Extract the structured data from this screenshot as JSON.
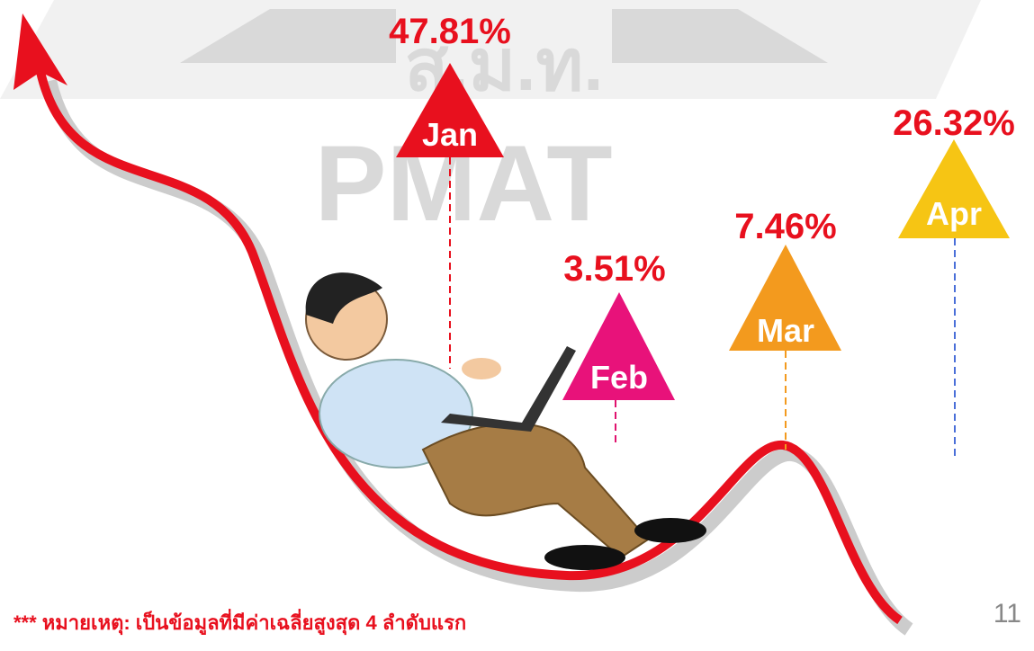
{
  "watermark": {
    "abbrev": "ส.ม.ท.",
    "text": "PMAT"
  },
  "items": [
    {
      "month": "Jan",
      "value": "47.81%"
    },
    {
      "month": "Feb",
      "value": "3.51%"
    },
    {
      "month": "Mar",
      "value": "7.46%"
    },
    {
      "month": "Apr",
      "value": "26.32%"
    }
  ],
  "footnote": "*** หมายเหตุ: เป็นข้อมูลที่มีค่าเฉลี่ยสูงสุด 4 ลำดับแรก",
  "page_number": "11"
}
